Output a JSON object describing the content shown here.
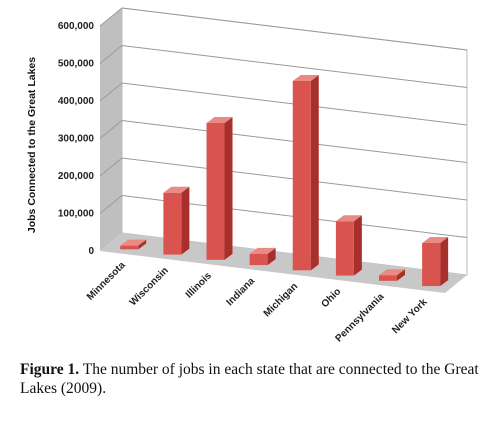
{
  "chart_data": {
    "type": "bar",
    "categories": [
      "Minnesota",
      "Wisconsin",
      "Illinois",
      "Indiana",
      "Michigan",
      "Ohio",
      "Pennsylvania",
      "New York"
    ],
    "values": [
      10000,
      165000,
      365000,
      30000,
      505000,
      145000,
      15000,
      115000
    ],
    "ylabel": "Jobs Connected to the Great Lakes",
    "xlabel": "",
    "ylim": [
      0,
      600000
    ],
    "yticks": [
      "0",
      "100,000",
      "200,000",
      "300,000",
      "400,000",
      "500,000",
      "600,000"
    ],
    "grid": true,
    "style": "3d-column",
    "colors": {
      "bar_front": "#d9534f",
      "bar_side": "#a8302c",
      "bar_top": "#ea8a85",
      "back_wall": "#ffffff",
      "side_wall": "#bfbfbf",
      "floor": "#c8c8c8"
    }
  },
  "caption": {
    "label": "Figure 1.",
    "text": " The number of jobs in each state that are connected to the Great Lakes (2009)."
  }
}
